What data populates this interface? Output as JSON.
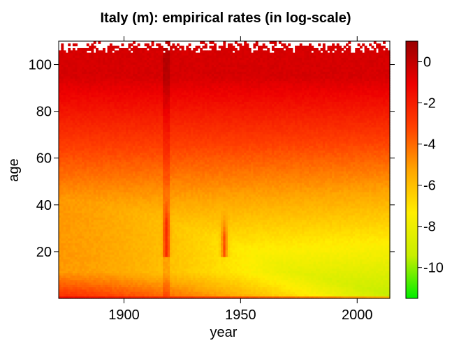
{
  "chart_data": {
    "type": "heatmap",
    "title": "Italy (m): empirical rates (in log-scale)",
    "xlabel": "year",
    "ylabel": "age",
    "x_range": [
      1872,
      2014
    ],
    "y_range": [
      0,
      110
    ],
    "x_ticks": [
      1900,
      1950,
      2000
    ],
    "y_ticks": [
      20,
      40,
      60,
      80,
      100
    ],
    "colorbar": {
      "range": [
        -11.5,
        1
      ],
      "ticks": [
        0,
        -2,
        -4,
        -6,
        -8,
        -10
      ],
      "colors": [
        "#00ee00",
        "#c8ee00",
        "#ffee00",
        "#ffa500",
        "#ff4000",
        "#ee0000",
        "#990000"
      ]
    },
    "features": {
      "infant_rate_early": -1.5,
      "infant_rate_late": -5.5,
      "child_min_rate_early": -5.0,
      "child_min_rate_late": -10.5,
      "oldest_age_rate": -0.5,
      "war_peaks": [
        {
          "year": 1918,
          "age_range": [
            18,
            32
          ],
          "rate": -3.3
        },
        {
          "year": 1943,
          "age_range": [
            18,
            26
          ],
          "rate": -3.5
        }
      ]
    }
  }
}
